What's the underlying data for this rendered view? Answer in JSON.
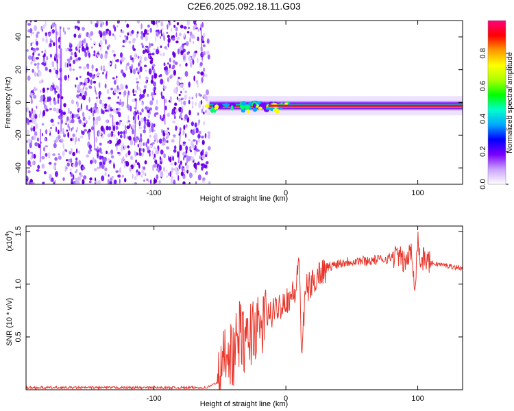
{
  "figure": {
    "title": "C2E6.2025.092.18.11.G03"
  },
  "chart_data": [
    {
      "type": "heatmap",
      "xlabel": "Height of straight line (km)",
      "ylabel": "Frequency (Hz)",
      "xlim": [
        -197,
        134
      ],
      "ylim": [
        -50,
        50
      ],
      "xticks": [
        -100,
        0,
        100
      ],
      "yticks": [
        -40,
        -20,
        0,
        20,
        40
      ],
      "colorbar": {
        "label": "Normalized spectral amplitude",
        "range": [
          0,
          1
        ],
        "ticks": [
          "0.0",
          "0.2",
          "0.4",
          "0.6",
          "0.8"
        ],
        "colormap": [
          "#ffffff",
          "#c9a3ff",
          "#7a00ff",
          "#0000ff",
          "#00a8ff",
          "#00ffcc",
          "#00ff00",
          "#aaff00",
          "#ffff00",
          "#ff9900",
          "#ff0000",
          "#ff0080"
        ]
      },
      "noise_region": {
        "x_start": -197,
        "x_end": -60,
        "level": 0.15
      },
      "signal_band": {
        "x_start": -60,
        "x_end": 134,
        "center_hz": -2,
        "level": 1.0
      },
      "grid": false
    },
    {
      "type": "line",
      "xlabel": "Height of straight line (km)",
      "ylabel": "SNR (10 * v/v)",
      "yscale_note": "(x10",
      "yscale_exp": "4",
      "xlim": [
        -197,
        134
      ],
      "ylim": [
        0,
        1.55
      ],
      "xticks": [
        -100,
        0,
        100
      ],
      "yticks": [
        "0.5",
        "1.0",
        "1.5"
      ],
      "grid": false,
      "color": "#e8352a",
      "series": [
        {
          "x": [
            -197,
            -160,
            -120,
            -80,
            -60,
            -50,
            -45,
            -40,
            -35,
            -30,
            -25,
            -20,
            -15,
            -10,
            -5,
            0,
            5,
            8,
            10,
            12,
            15,
            20,
            25,
            30,
            40,
            50,
            60,
            70,
            80,
            85,
            90,
            95,
            98,
            100,
            102,
            105,
            110,
            120,
            134
          ],
          "y": [
            0.02,
            0.02,
            0.02,
            0.02,
            0.02,
            0.08,
            0.45,
            0.3,
            0.55,
            0.4,
            0.6,
            0.55,
            0.7,
            0.72,
            0.8,
            0.85,
            0.9,
            0.95,
            1.3,
            0.32,
            0.95,
            1.0,
            1.1,
            1.15,
            1.2,
            1.22,
            1.22,
            1.23,
            1.25,
            1.28,
            1.2,
            1.3,
            1.0,
            1.45,
            1.2,
            1.25,
            1.2,
            1.18,
            1.15
          ]
        }
      ]
    }
  ]
}
